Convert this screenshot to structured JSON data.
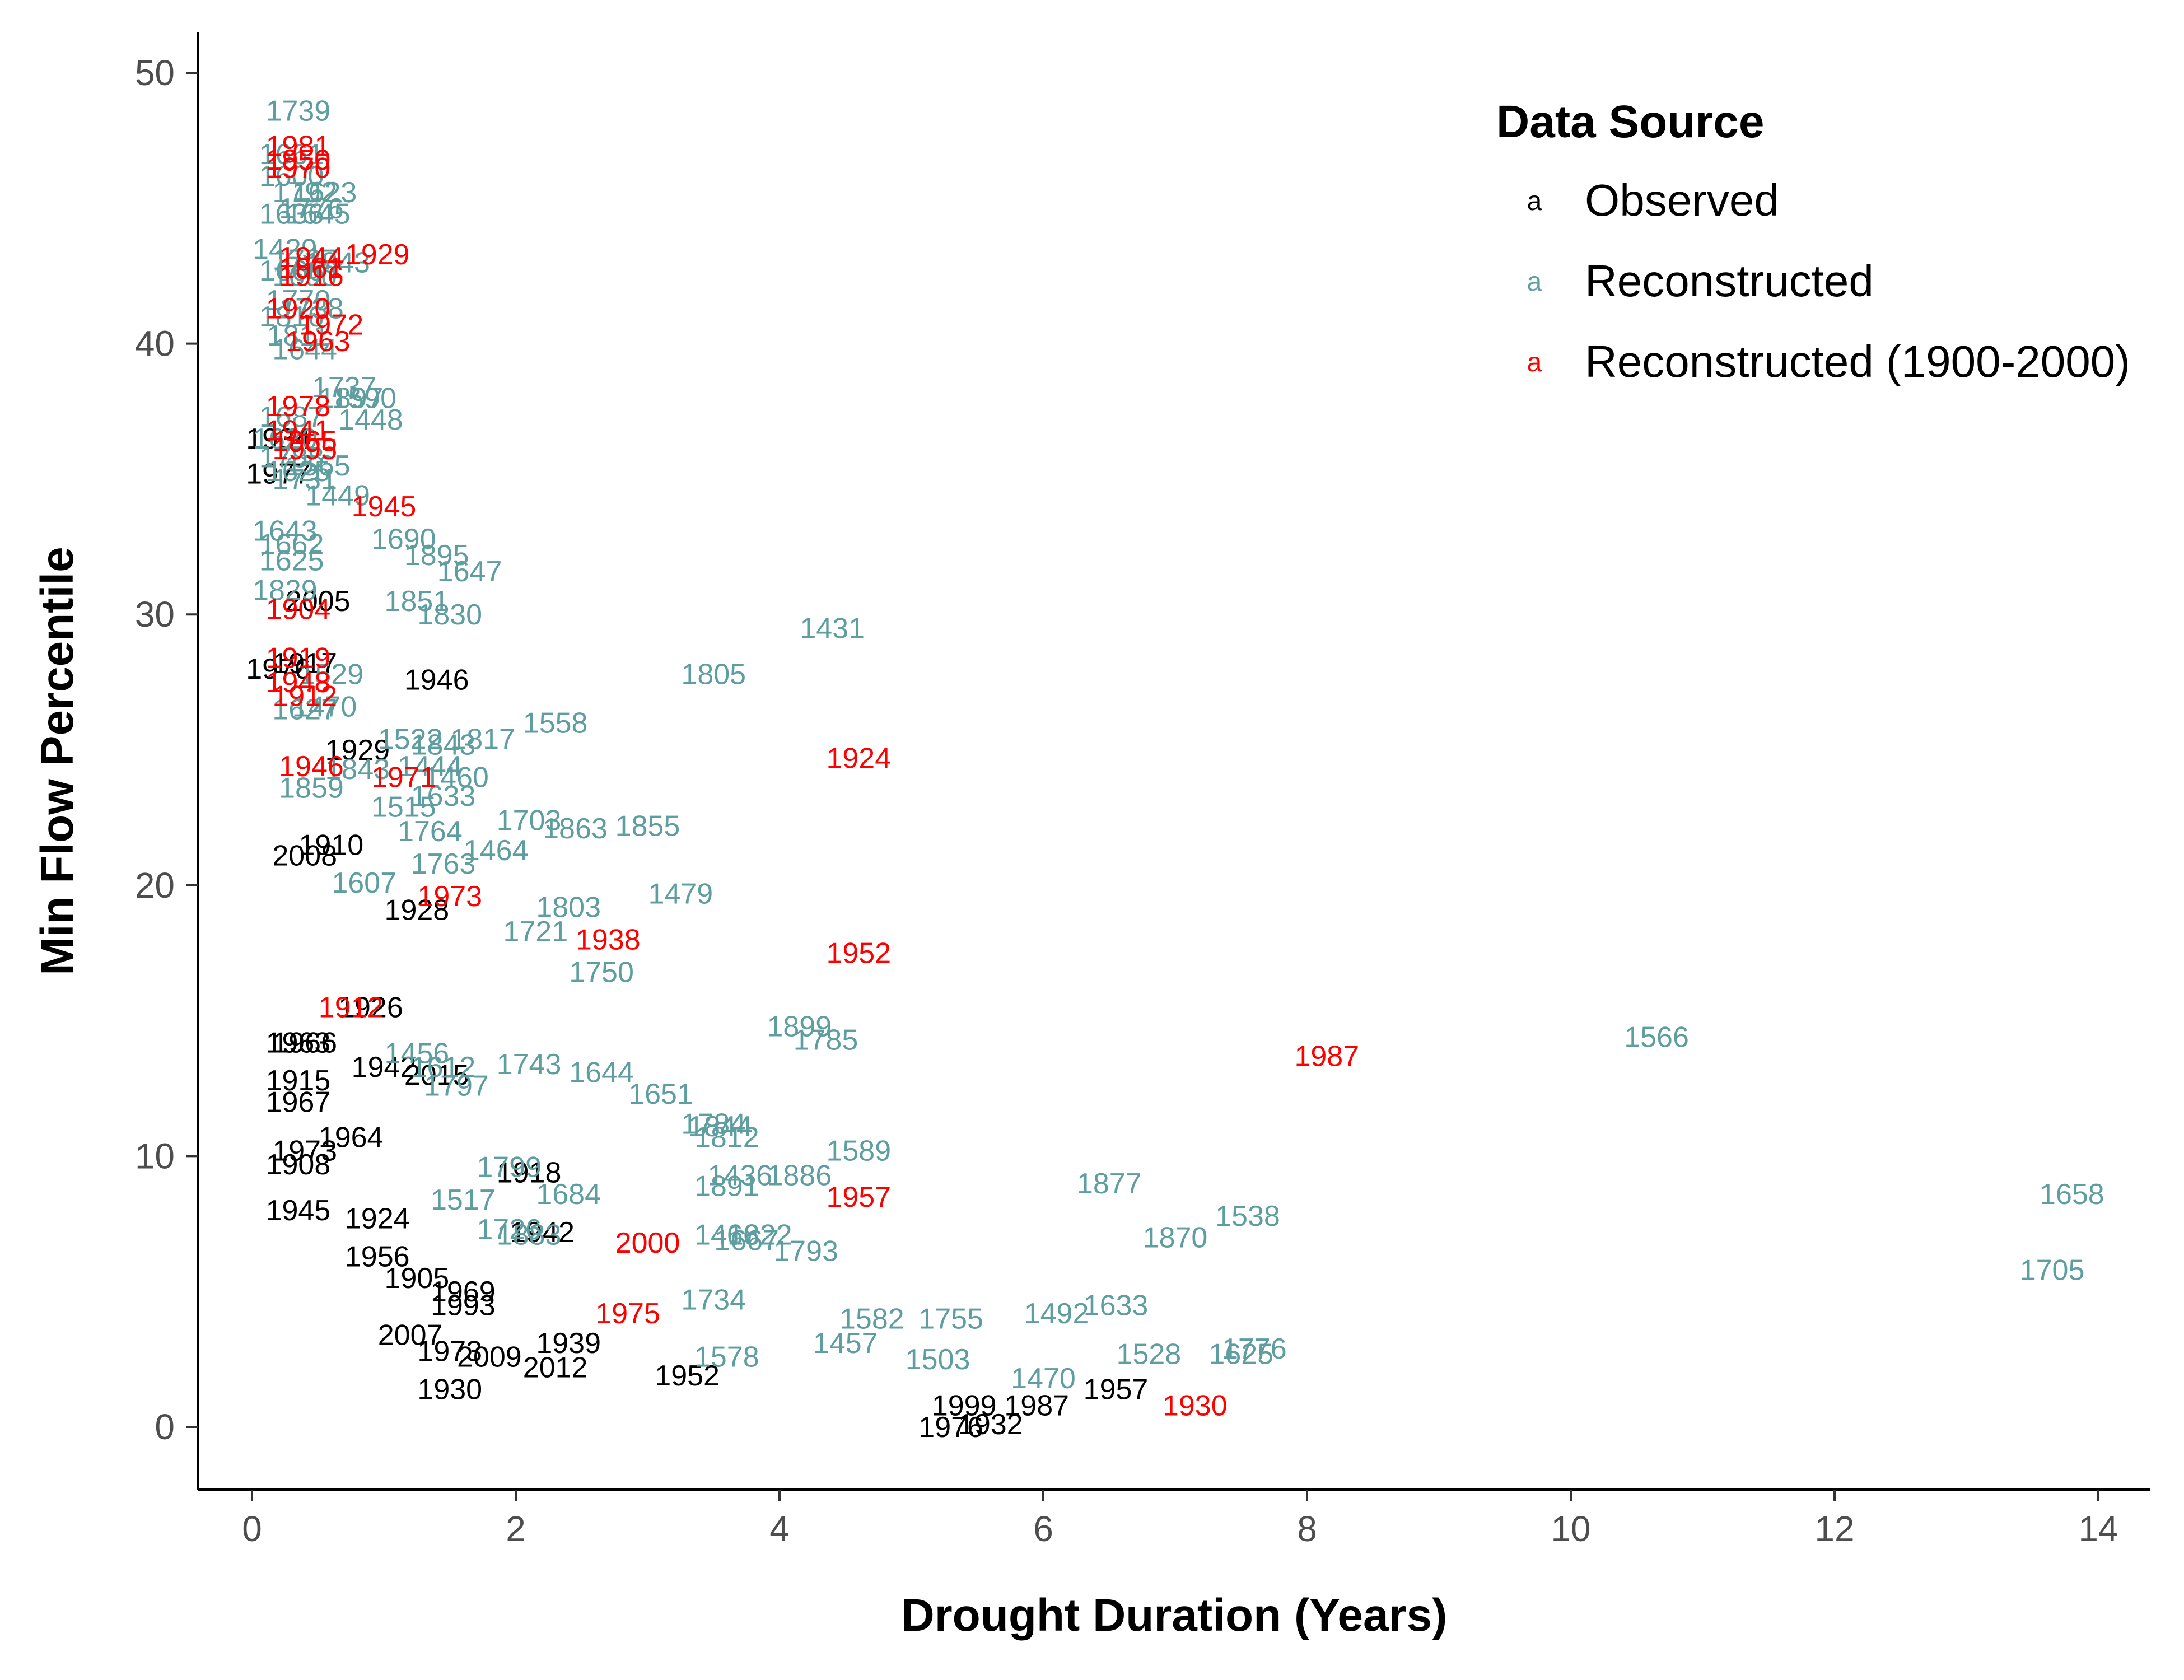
{
  "chart_data": {
    "type": "scatter",
    "marker": "year-text-label",
    "xlabel": "Drought Duration (Years)",
    "ylabel": "Min Flow Percentile",
    "xlim": [
      -0.2,
      14.4
    ],
    "ylim": [
      -2.4,
      51.2
    ],
    "x_ticks": [
      0,
      2,
      4,
      6,
      8,
      10,
      12,
      14
    ],
    "y_ticks": [
      0,
      10,
      20,
      30,
      40,
      50
    ],
    "grid": false,
    "legend": {
      "title": "Data Source",
      "placement": "top-right",
      "key_glyph": "a",
      "entries": [
        {
          "name": "Observed",
          "color": "#000000"
        },
        {
          "name": "Reconstructed",
          "color": "#5F9EA0"
        },
        {
          "name": "Reconstructed (1900-2000)",
          "color": "#FF0000"
        }
      ]
    },
    "series": [
      {
        "name": "Observed",
        "color": "#000000",
        "points": [
          {
            "x": 0.2,
            "y": 36.5,
            "label": "1934"
          },
          {
            "x": 0.2,
            "y": 35.2,
            "label": "1977"
          },
          {
            "x": 0.5,
            "y": 30.5,
            "label": "2005"
          },
          {
            "x": 0.2,
            "y": 28.0,
            "label": "1976"
          },
          {
            "x": 0.4,
            "y": 28.2,
            "label": "1917"
          },
          {
            "x": 1.4,
            "y": 27.6,
            "label": "1946"
          },
          {
            "x": 0.8,
            "y": 25.0,
            "label": "1929"
          },
          {
            "x": 0.6,
            "y": 21.5,
            "label": "1910"
          },
          {
            "x": 0.4,
            "y": 21.1,
            "label": "2008"
          },
          {
            "x": 1.25,
            "y": 19.1,
            "label": "1928"
          },
          {
            "x": 0.9,
            "y": 15.5,
            "label": "1926"
          },
          {
            "x": 0.4,
            "y": 14.2,
            "label": "1966"
          },
          {
            "x": 0.35,
            "y": 14.2,
            "label": "1963"
          },
          {
            "x": 1.0,
            "y": 13.3,
            "label": "1942"
          },
          {
            "x": 1.4,
            "y": 13.0,
            "label": "2015"
          },
          {
            "x": 0.35,
            "y": 12.8,
            "label": "1915"
          },
          {
            "x": 0.35,
            "y": 12.0,
            "label": "1967"
          },
          {
            "x": 0.75,
            "y": 10.7,
            "label": "1964"
          },
          {
            "x": 0.4,
            "y": 10.2,
            "label": "1973"
          },
          {
            "x": 0.35,
            "y": 9.7,
            "label": "1908"
          },
          {
            "x": 2.1,
            "y": 9.4,
            "label": "1918"
          },
          {
            "x": 0.35,
            "y": 8.0,
            "label": "1945"
          },
          {
            "x": 0.95,
            "y": 7.7,
            "label": "1924"
          },
          {
            "x": 2.2,
            "y": 7.2,
            "label": "1942"
          },
          {
            "x": 0.95,
            "y": 6.3,
            "label": "1956"
          },
          {
            "x": 1.25,
            "y": 5.5,
            "label": "1905"
          },
          {
            "x": 1.6,
            "y": 5.0,
            "label": "1969"
          },
          {
            "x": 1.6,
            "y": 4.5,
            "label": "1993"
          },
          {
            "x": 1.2,
            "y": 3.4,
            "label": "2007"
          },
          {
            "x": 1.5,
            "y": 2.8,
            "label": "1973"
          },
          {
            "x": 1.8,
            "y": 2.6,
            "label": "2009"
          },
          {
            "x": 2.4,
            "y": 3.1,
            "label": "1939"
          },
          {
            "x": 2.3,
            "y": 2.2,
            "label": "2012"
          },
          {
            "x": 1.5,
            "y": 1.4,
            "label": "1930"
          },
          {
            "x": 3.3,
            "y": 1.9,
            "label": "1952"
          },
          {
            "x": 5.4,
            "y": 0.8,
            "label": "1999"
          },
          {
            "x": 5.95,
            "y": 0.8,
            "label": "1987"
          },
          {
            "x": 6.55,
            "y": 1.4,
            "label": "1957"
          },
          {
            "x": 5.3,
            "y": 0.0,
            "label": "1976"
          },
          {
            "x": 5.6,
            "y": 0.1,
            "label": "1932"
          }
        ]
      },
      {
        "name": "Reconstructed",
        "color": "#5F9EA0",
        "points": [
          {
            "x": 0.35,
            "y": 48.6,
            "label": "1739"
          },
          {
            "x": 0.3,
            "y": 47.0,
            "label": "1661"
          },
          {
            "x": 0.3,
            "y": 46.2,
            "label": "1600"
          },
          {
            "x": 0.4,
            "y": 45.6,
            "label": "1792"
          },
          {
            "x": 0.55,
            "y": 45.6,
            "label": "1623"
          },
          {
            "x": 0.45,
            "y": 45.0,
            "label": "1776"
          },
          {
            "x": 0.3,
            "y": 44.8,
            "label": "1636"
          },
          {
            "x": 0.5,
            "y": 44.8,
            "label": "1645"
          },
          {
            "x": 0.25,
            "y": 43.5,
            "label": "1429"
          },
          {
            "x": 0.4,
            "y": 43.1,
            "label": "1727"
          },
          {
            "x": 0.3,
            "y": 42.7,
            "label": "1666"
          },
          {
            "x": 0.65,
            "y": 43.0,
            "label": "1843"
          },
          {
            "x": 0.4,
            "y": 42.5,
            "label": "1690"
          },
          {
            "x": 0.35,
            "y": 41.6,
            "label": "1770"
          },
          {
            "x": 0.3,
            "y": 41.0,
            "label": "1816"
          },
          {
            "x": 0.45,
            "y": 41.3,
            "label": "1738"
          },
          {
            "x": 0.35,
            "y": 40.3,
            "label": "1811"
          },
          {
            "x": 0.4,
            "y": 39.8,
            "label": "1644"
          },
          {
            "x": 0.7,
            "y": 38.4,
            "label": "1737"
          },
          {
            "x": 0.75,
            "y": 38.0,
            "label": "1897"
          },
          {
            "x": 0.85,
            "y": 38.0,
            "label": "1590"
          },
          {
            "x": 0.3,
            "y": 37.3,
            "label": "1687"
          },
          {
            "x": 0.9,
            "y": 37.2,
            "label": "1448"
          },
          {
            "x": 0.25,
            "y": 36.5,
            "label": "1620"
          },
          {
            "x": 0.3,
            "y": 35.8,
            "label": "1788"
          },
          {
            "x": 0.35,
            "y": 35.3,
            "label": "1625"
          },
          {
            "x": 0.5,
            "y": 35.5,
            "label": "1565"
          },
          {
            "x": 0.4,
            "y": 35.0,
            "label": "1731"
          },
          {
            "x": 0.65,
            "y": 34.4,
            "label": "1449"
          },
          {
            "x": 0.25,
            "y": 33.1,
            "label": "1643"
          },
          {
            "x": 0.3,
            "y": 32.6,
            "label": "1662"
          },
          {
            "x": 0.3,
            "y": 32.0,
            "label": "1625"
          },
          {
            "x": 1.15,
            "y": 32.8,
            "label": "1690"
          },
          {
            "x": 1.4,
            "y": 32.2,
            "label": "1895"
          },
          {
            "x": 1.65,
            "y": 31.6,
            "label": "1647"
          },
          {
            "x": 0.25,
            "y": 30.9,
            "label": "1829"
          },
          {
            "x": 1.25,
            "y": 30.5,
            "label": "1851"
          },
          {
            "x": 1.5,
            "y": 30.0,
            "label": "1830"
          },
          {
            "x": 4.4,
            "y": 29.5,
            "label": "1431"
          },
          {
            "x": 3.5,
            "y": 27.8,
            "label": "1805"
          },
          {
            "x": 0.6,
            "y": 27.8,
            "label": "1529"
          },
          {
            "x": 0.4,
            "y": 26.5,
            "label": "1627"
          },
          {
            "x": 0.55,
            "y": 26.6,
            "label": "1470"
          },
          {
            "x": 2.3,
            "y": 26.0,
            "label": "1558"
          },
          {
            "x": 1.75,
            "y": 25.4,
            "label": "1817"
          },
          {
            "x": 1.2,
            "y": 25.4,
            "label": "1522"
          },
          {
            "x": 1.45,
            "y": 25.2,
            "label": "1843"
          },
          {
            "x": 1.35,
            "y": 24.4,
            "label": "1444"
          },
          {
            "x": 0.8,
            "y": 24.3,
            "label": "1843"
          },
          {
            "x": 1.55,
            "y": 24.0,
            "label": "1460"
          },
          {
            "x": 0.45,
            "y": 23.6,
            "label": "1859"
          },
          {
            "x": 1.45,
            "y": 23.3,
            "label": "1633"
          },
          {
            "x": 1.15,
            "y": 22.9,
            "label": "1515"
          },
          {
            "x": 2.1,
            "y": 22.4,
            "label": "1703"
          },
          {
            "x": 2.45,
            "y": 22.1,
            "label": "1863"
          },
          {
            "x": 3.0,
            "y": 22.2,
            "label": "1855"
          },
          {
            "x": 1.35,
            "y": 22.0,
            "label": "1764"
          },
          {
            "x": 1.85,
            "y": 21.3,
            "label": "1464"
          },
          {
            "x": 1.45,
            "y": 20.8,
            "label": "1763"
          },
          {
            "x": 0.85,
            "y": 20.1,
            "label": "1607"
          },
          {
            "x": 3.25,
            "y": 19.7,
            "label": "1479"
          },
          {
            "x": 2.4,
            "y": 19.2,
            "label": "1803"
          },
          {
            "x": 2.15,
            "y": 18.3,
            "label": "1721"
          },
          {
            "x": 2.65,
            "y": 16.8,
            "label": "1750"
          },
          {
            "x": 4.15,
            "y": 14.8,
            "label": "1899"
          },
          {
            "x": 4.35,
            "y": 14.3,
            "label": "1785"
          },
          {
            "x": 10.65,
            "y": 14.4,
            "label": "1566"
          },
          {
            "x": 1.25,
            "y": 13.8,
            "label": "1456"
          },
          {
            "x": 2.1,
            "y": 13.4,
            "label": "1743"
          },
          {
            "x": 1.45,
            "y": 13.3,
            "label": "1612"
          },
          {
            "x": 2.65,
            "y": 13.1,
            "label": "1644"
          },
          {
            "x": 1.55,
            "y": 12.6,
            "label": "1797"
          },
          {
            "x": 3.1,
            "y": 12.3,
            "label": "1651"
          },
          {
            "x": 3.5,
            "y": 11.2,
            "label": "1784"
          },
          {
            "x": 3.55,
            "y": 11.1,
            "label": "1844"
          },
          {
            "x": 3.6,
            "y": 10.7,
            "label": "1812"
          },
          {
            "x": 4.6,
            "y": 10.2,
            "label": "1589"
          },
          {
            "x": 1.95,
            "y": 9.6,
            "label": "1799"
          },
          {
            "x": 3.7,
            "y": 9.3,
            "label": "1436"
          },
          {
            "x": 4.15,
            "y": 9.3,
            "label": "1886"
          },
          {
            "x": 3.6,
            "y": 8.9,
            "label": "1891"
          },
          {
            "x": 6.5,
            "y": 9.0,
            "label": "1877"
          },
          {
            "x": 2.4,
            "y": 8.6,
            "label": "1684"
          },
          {
            "x": 1.6,
            "y": 8.4,
            "label": "1517"
          },
          {
            "x": 13.8,
            "y": 8.6,
            "label": "1658"
          },
          {
            "x": 7.55,
            "y": 7.8,
            "label": "1538"
          },
          {
            "x": 1.95,
            "y": 7.3,
            "label": "1726"
          },
          {
            "x": 2.1,
            "y": 7.1,
            "label": "1883"
          },
          {
            "x": 3.6,
            "y": 7.1,
            "label": "1466"
          },
          {
            "x": 3.85,
            "y": 7.1,
            "label": "1822"
          },
          {
            "x": 3.75,
            "y": 6.9,
            "label": "1667"
          },
          {
            "x": 7.0,
            "y": 7.0,
            "label": "1870"
          },
          {
            "x": 4.2,
            "y": 6.5,
            "label": "1793"
          },
          {
            "x": 13.65,
            "y": 5.8,
            "label": "1705"
          },
          {
            "x": 3.5,
            "y": 4.7,
            "label": "1734"
          },
          {
            "x": 6.55,
            "y": 4.5,
            "label": "1633"
          },
          {
            "x": 4.7,
            "y": 4.0,
            "label": "1582"
          },
          {
            "x": 5.3,
            "y": 4.0,
            "label": "1755"
          },
          {
            "x": 6.1,
            "y": 4.2,
            "label": "1492"
          },
          {
            "x": 4.5,
            "y": 3.1,
            "label": "1457"
          },
          {
            "x": 7.6,
            "y": 2.9,
            "label": "1776"
          },
          {
            "x": 3.6,
            "y": 2.6,
            "label": "1578"
          },
          {
            "x": 5.2,
            "y": 2.5,
            "label": "1503"
          },
          {
            "x": 6.8,
            "y": 2.7,
            "label": "1528"
          },
          {
            "x": 7.5,
            "y": 2.7,
            "label": "1625"
          },
          {
            "x": 6.0,
            "y": 1.8,
            "label": "1470"
          }
        ]
      },
      {
        "name": "Reconstructed (1900-2000)",
        "color": "#FF0000",
        "points": [
          {
            "x": 0.35,
            "y": 47.3,
            "label": "1981"
          },
          {
            "x": 0.35,
            "y": 46.8,
            "label": "1950"
          },
          {
            "x": 0.35,
            "y": 46.5,
            "label": "1970"
          },
          {
            "x": 0.95,
            "y": 43.3,
            "label": "1929"
          },
          {
            "x": 0.45,
            "y": 43.2,
            "label": "1944"
          },
          {
            "x": 0.45,
            "y": 42.8,
            "label": "1961"
          },
          {
            "x": 0.45,
            "y": 42.5,
            "label": "1916"
          },
          {
            "x": 0.35,
            "y": 41.3,
            "label": "1920"
          },
          {
            "x": 0.6,
            "y": 40.7,
            "label": "1972"
          },
          {
            "x": 0.5,
            "y": 40.1,
            "label": "1963"
          },
          {
            "x": 0.35,
            "y": 37.7,
            "label": "1978"
          },
          {
            "x": 0.35,
            "y": 36.8,
            "label": "1941"
          },
          {
            "x": 0.4,
            "y": 36.4,
            "label": "1965"
          },
          {
            "x": 0.4,
            "y": 36.1,
            "label": "1995"
          },
          {
            "x": 1.0,
            "y": 34.0,
            "label": "1945"
          },
          {
            "x": 0.35,
            "y": 30.2,
            "label": "1904"
          },
          {
            "x": 0.35,
            "y": 28.4,
            "label": "1919"
          },
          {
            "x": 0.35,
            "y": 27.5,
            "label": "1948"
          },
          {
            "x": 0.4,
            "y": 27.0,
            "label": "1912"
          },
          {
            "x": 4.6,
            "y": 24.7,
            "label": "1924"
          },
          {
            "x": 0.45,
            "y": 24.4,
            "label": "1946"
          },
          {
            "x": 1.15,
            "y": 24.0,
            "label": "1971"
          },
          {
            "x": 1.5,
            "y": 19.6,
            "label": "1973"
          },
          {
            "x": 2.7,
            "y": 18.0,
            "label": "1938"
          },
          {
            "x": 4.6,
            "y": 17.5,
            "label": "1952"
          },
          {
            "x": 0.75,
            "y": 15.5,
            "label": "1912"
          },
          {
            "x": 8.15,
            "y": 13.7,
            "label": "1987"
          },
          {
            "x": 4.6,
            "y": 8.5,
            "label": "1957"
          },
          {
            "x": 3.0,
            "y": 6.8,
            "label": "2000"
          },
          {
            "x": 2.85,
            "y": 4.2,
            "label": "1975"
          },
          {
            "x": 7.15,
            "y": 0.8,
            "label": "1930"
          }
        ]
      }
    ]
  }
}
